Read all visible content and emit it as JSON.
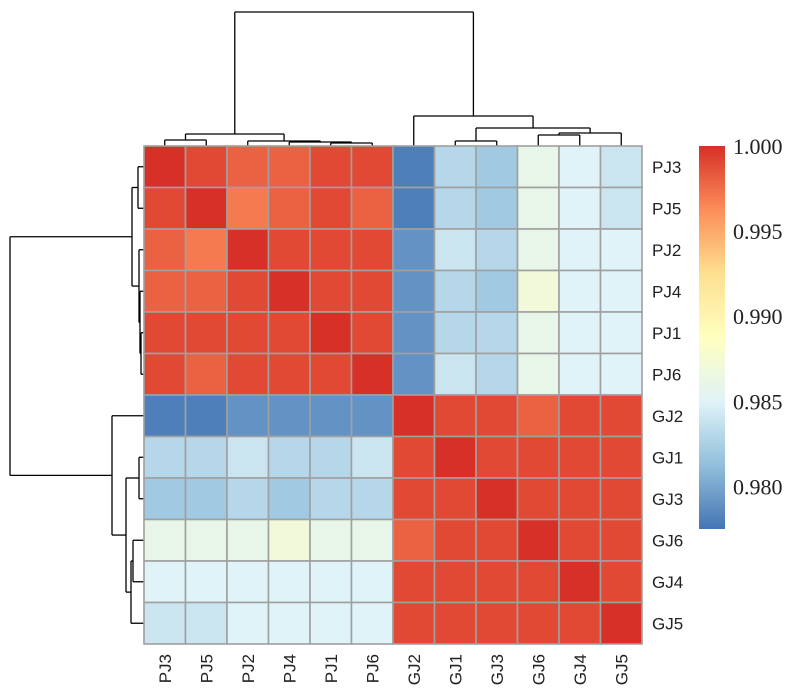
{
  "chart_data": {
    "type": "heatmap",
    "title": "",
    "row_labels": [
      "PJ3",
      "PJ5",
      "PJ2",
      "PJ4",
      "PJ1",
      "PJ6",
      "GJ2",
      "GJ1",
      "GJ3",
      "GJ6",
      "GJ4",
      "GJ5"
    ],
    "col_labels": [
      "PJ3",
      "PJ5",
      "PJ2",
      "PJ4",
      "PJ1",
      "PJ6",
      "GJ2",
      "GJ1",
      "GJ3",
      "GJ6",
      "GJ4",
      "GJ5"
    ],
    "values": [
      [
        1.0,
        0.999,
        0.998,
        0.998,
        0.999,
        0.999,
        0.978,
        0.983,
        0.982,
        0.986,
        0.985,
        0.984
      ],
      [
        0.999,
        1.0,
        0.997,
        0.998,
        0.999,
        0.998,
        0.978,
        0.983,
        0.982,
        0.986,
        0.985,
        0.984
      ],
      [
        0.998,
        0.997,
        1.0,
        0.999,
        0.999,
        0.999,
        0.979,
        0.984,
        0.983,
        0.986,
        0.985,
        0.985
      ],
      [
        0.998,
        0.998,
        0.999,
        1.0,
        0.999,
        0.999,
        0.979,
        0.983,
        0.982,
        0.987,
        0.985,
        0.985
      ],
      [
        0.999,
        0.999,
        0.999,
        0.999,
        1.0,
        0.999,
        0.979,
        0.983,
        0.983,
        0.986,
        0.985,
        0.985
      ],
      [
        0.999,
        0.998,
        0.999,
        0.999,
        0.999,
        1.0,
        0.979,
        0.984,
        0.983,
        0.986,
        0.985,
        0.985
      ],
      [
        0.978,
        0.978,
        0.979,
        0.979,
        0.979,
        0.979,
        1.0,
        0.999,
        0.999,
        0.998,
        0.999,
        0.999
      ],
      [
        0.983,
        0.983,
        0.984,
        0.983,
        0.983,
        0.984,
        0.999,
        1.0,
        0.999,
        0.999,
        0.999,
        0.999
      ],
      [
        0.982,
        0.982,
        0.983,
        0.982,
        0.983,
        0.983,
        0.999,
        0.999,
        1.0,
        0.999,
        0.999,
        0.999
      ],
      [
        0.986,
        0.986,
        0.986,
        0.987,
        0.986,
        0.986,
        0.998,
        0.999,
        0.999,
        1.0,
        0.999,
        0.999
      ],
      [
        0.985,
        0.985,
        0.985,
        0.985,
        0.985,
        0.985,
        0.999,
        0.999,
        0.999,
        0.999,
        1.0,
        0.999
      ],
      [
        0.984,
        0.984,
        0.985,
        0.985,
        0.985,
        0.985,
        0.999,
        0.999,
        0.999,
        0.999,
        0.999,
        1.0
      ]
    ],
    "colorbar": {
      "min": 0.9775,
      "max": 1.0,
      "tick_values": [
        1.0,
        0.995,
        0.99,
        0.985,
        0.98
      ],
      "tick_labels": [
        "1.000",
        "0.995",
        "0.990",
        "0.985",
        "0.980"
      ],
      "colors": [
        "#4575b4",
        "#91bfdb",
        "#e0f3f8",
        "#ffffbf",
        "#fee090",
        "#fc8d59",
        "#d73027"
      ]
    },
    "cell_border_color": "#a0a0a0",
    "dendrograms": {
      "rows": true,
      "columns": true,
      "line_color": "#000000"
    },
    "xlabel": "",
    "ylabel": ""
  }
}
